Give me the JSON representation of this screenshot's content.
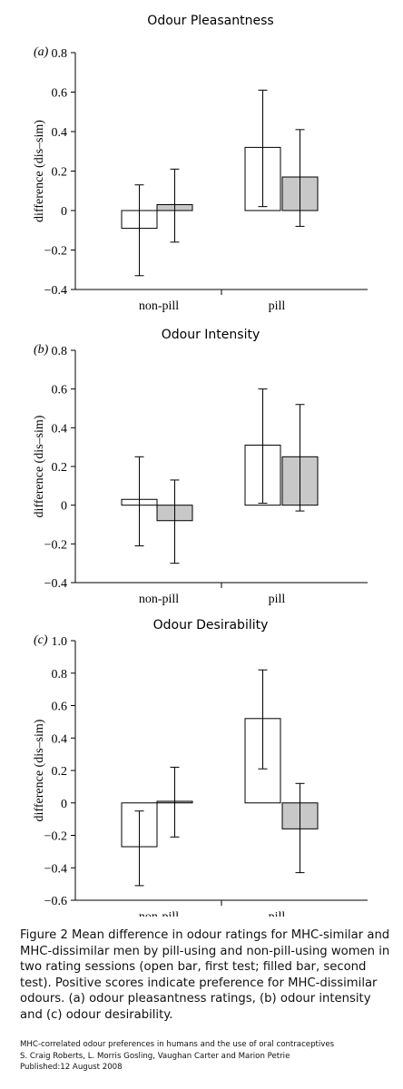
{
  "chart_data": [
    {
      "type": "bar",
      "panel": "(a)",
      "title": "Odour Pleasantness",
      "ylabel": "difference (dis–sim)",
      "ylim": [
        -0.4,
        0.8
      ],
      "yticks": [
        -0.4,
        -0.2,
        0,
        0.2,
        0.4,
        0.6,
        0.8
      ],
      "yticklabels": [
        "−0.4",
        "−0.2",
        "0",
        "0.2",
        "0.4",
        "0.6",
        "0.8"
      ],
      "categories": [
        "non-pill",
        "pill"
      ],
      "series": [
        {
          "fill": "#ffffff",
          "values": [
            -0.09,
            0.32
          ],
          "error_low": [
            -0.33,
            0.02
          ],
          "error_high": [
            0.13,
            0.61
          ]
        },
        {
          "fill": "#c8c8c8",
          "values": [
            0.03,
            0.17
          ],
          "error_low": [
            -0.16,
            -0.08
          ],
          "error_high": [
            0.21,
            0.41
          ]
        }
      ]
    },
    {
      "type": "bar",
      "panel": "(b)",
      "title": "Odour Intensity",
      "ylabel": "difference (dis–sim)",
      "ylim": [
        -0.4,
        0.8
      ],
      "yticks": [
        -0.4,
        -0.2,
        0,
        0.2,
        0.4,
        0.6,
        0.8
      ],
      "yticklabels": [
        "−0.4",
        "−0.2",
        "0",
        "0.2",
        "0.4",
        "0.6",
        "0.8"
      ],
      "categories": [
        "non-pill",
        "pill"
      ],
      "series": [
        {
          "fill": "#ffffff",
          "values": [
            0.03,
            0.31
          ],
          "error_low": [
            -0.21,
            0.01
          ],
          "error_high": [
            0.25,
            0.6
          ]
        },
        {
          "fill": "#c8c8c8",
          "values": [
            -0.08,
            0.25
          ],
          "error_low": [
            -0.3,
            -0.03
          ],
          "error_high": [
            0.13,
            0.52
          ]
        }
      ]
    },
    {
      "type": "bar",
      "panel": "(c)",
      "title": "Odour Desirability",
      "ylabel": "difference (dis–sim)",
      "ylim": [
        -0.6,
        1.0
      ],
      "yticks": [
        -0.6,
        -0.4,
        -0.2,
        0,
        0.2,
        0.4,
        0.6,
        0.8,
        1.0
      ],
      "yticklabels": [
        "−0.6",
        "−0.4",
        "−0.2",
        "0",
        "0.2",
        "0.4",
        "0.6",
        "0.8",
        "1.0"
      ],
      "categories": [
        "non-pill",
        "pill"
      ],
      "series": [
        {
          "fill": "#ffffff",
          "values": [
            -0.27,
            0.52
          ],
          "error_low": [
            -0.51,
            0.21
          ],
          "error_high": [
            -0.05,
            0.82
          ]
        },
        {
          "fill": "#c8c8c8",
          "values": [
            0.01,
            -0.16
          ],
          "error_low": [
            -0.21,
            -0.43
          ],
          "error_high": [
            0.22,
            0.12
          ]
        }
      ]
    }
  ],
  "caption": "Figure 2 Mean difference in odour ratings for MHC-similar and MHC-dissimilar men by pill-using and non-pill-using women in two rating sessions (open bar, first test; filled bar, second test). Positive scores indicate preference for MHC-dissimilar odours. (a) odour pleasantness ratings, (b) odour intensity and (c) odour desirability.",
  "source": {
    "article_title": "MHC-correlated odour preferences in humans and the use of oral contraceptives",
    "authors": "S. Craig Roberts, L. Morris Gosling, Vaughan Carter and Marion Petrie",
    "published": "Published:12 August 2008"
  }
}
